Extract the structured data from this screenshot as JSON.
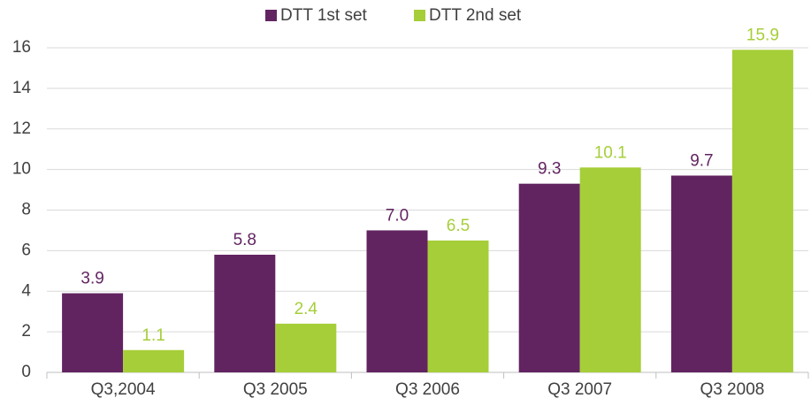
{
  "chart_data": {
    "type": "bar",
    "categories": [
      "Q3,2004",
      "Q3 2005",
      "Q3 2006",
      "Q3 2007",
      "Q3 2008"
    ],
    "series": [
      {
        "name": "DTT 1st set",
        "color": "#622461",
        "values": [
          3.9,
          5.8,
          7.0,
          9.3,
          9.7
        ],
        "value_labels": [
          "3.9",
          "5.8",
          "7.0",
          "9.3",
          "9.7"
        ]
      },
      {
        "name": "DTT 2nd set",
        "color": "#a6ce39",
        "values": [
          1.1,
          2.4,
          6.5,
          10.1,
          15.9
        ],
        "value_labels": [
          "1.1",
          "2.4",
          "6.5",
          "10.1",
          "15.9"
        ]
      }
    ],
    "ylim": [
      0,
      16
    ],
    "yticks": [
      0,
      2,
      4,
      6,
      8,
      10,
      12,
      14,
      16
    ],
    "grid": true,
    "legend": "top"
  }
}
